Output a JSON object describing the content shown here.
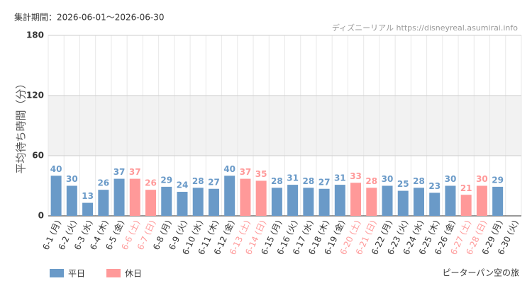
{
  "chart_data": {
    "type": "bar",
    "subtitle": "集計期間：2026-06-01～2026-06-30",
    "source": "ディズニーリアル https://disneyreal.asumirai.info",
    "title": "ピーターパン空の旅",
    "y_label": "平均待ち時間（分）",
    "categories": [
      "6-1 (月)",
      "6-2 (火)",
      "6-3 (水)",
      "6-4 (木)",
      "6-5 (金)",
      "6-6 (土)",
      "6-7 (日)",
      "6-8 (月)",
      "6-9 (火)",
      "6-10 (水)",
      "6-11 (木)",
      "6-12 (金)",
      "6-13 (土)",
      "6-14 (日)",
      "6-15 (月)",
      "6-16 (火)",
      "6-17 (水)",
      "6-18 (木)",
      "6-19 (金)",
      "6-20 (土)",
      "6-21 (日)",
      "6-22 (月)",
      "6-23 (火)",
      "6-24 (水)",
      "6-25 (木)",
      "6-26 (金)",
      "6-27 (土)",
      "6-28 (日)",
      "6-29 (月)",
      "6-30 (火)"
    ],
    "series": [
      {
        "name": "平日",
        "color": "#6a9ac8",
        "values": [
          40,
          30,
          13,
          26,
          37,
          null,
          null,
          29,
          24,
          28,
          27,
          40,
          null,
          null,
          28,
          31,
          28,
          27,
          31,
          null,
          null,
          30,
          25,
          28,
          23,
          30,
          null,
          null,
          29,
          null
        ]
      },
      {
        "name": "休日",
        "color": "#ff9999",
        "values": [
          null,
          null,
          null,
          null,
          null,
          37,
          26,
          null,
          null,
          null,
          null,
          null,
          37,
          35,
          null,
          null,
          null,
          null,
          null,
          33,
          28,
          null,
          null,
          null,
          null,
          null,
          21,
          30,
          null,
          null
        ]
      }
    ],
    "ylim": [
      0,
      180
    ],
    "yticks": [
      0,
      60,
      120,
      180
    ],
    "grid": true
  }
}
